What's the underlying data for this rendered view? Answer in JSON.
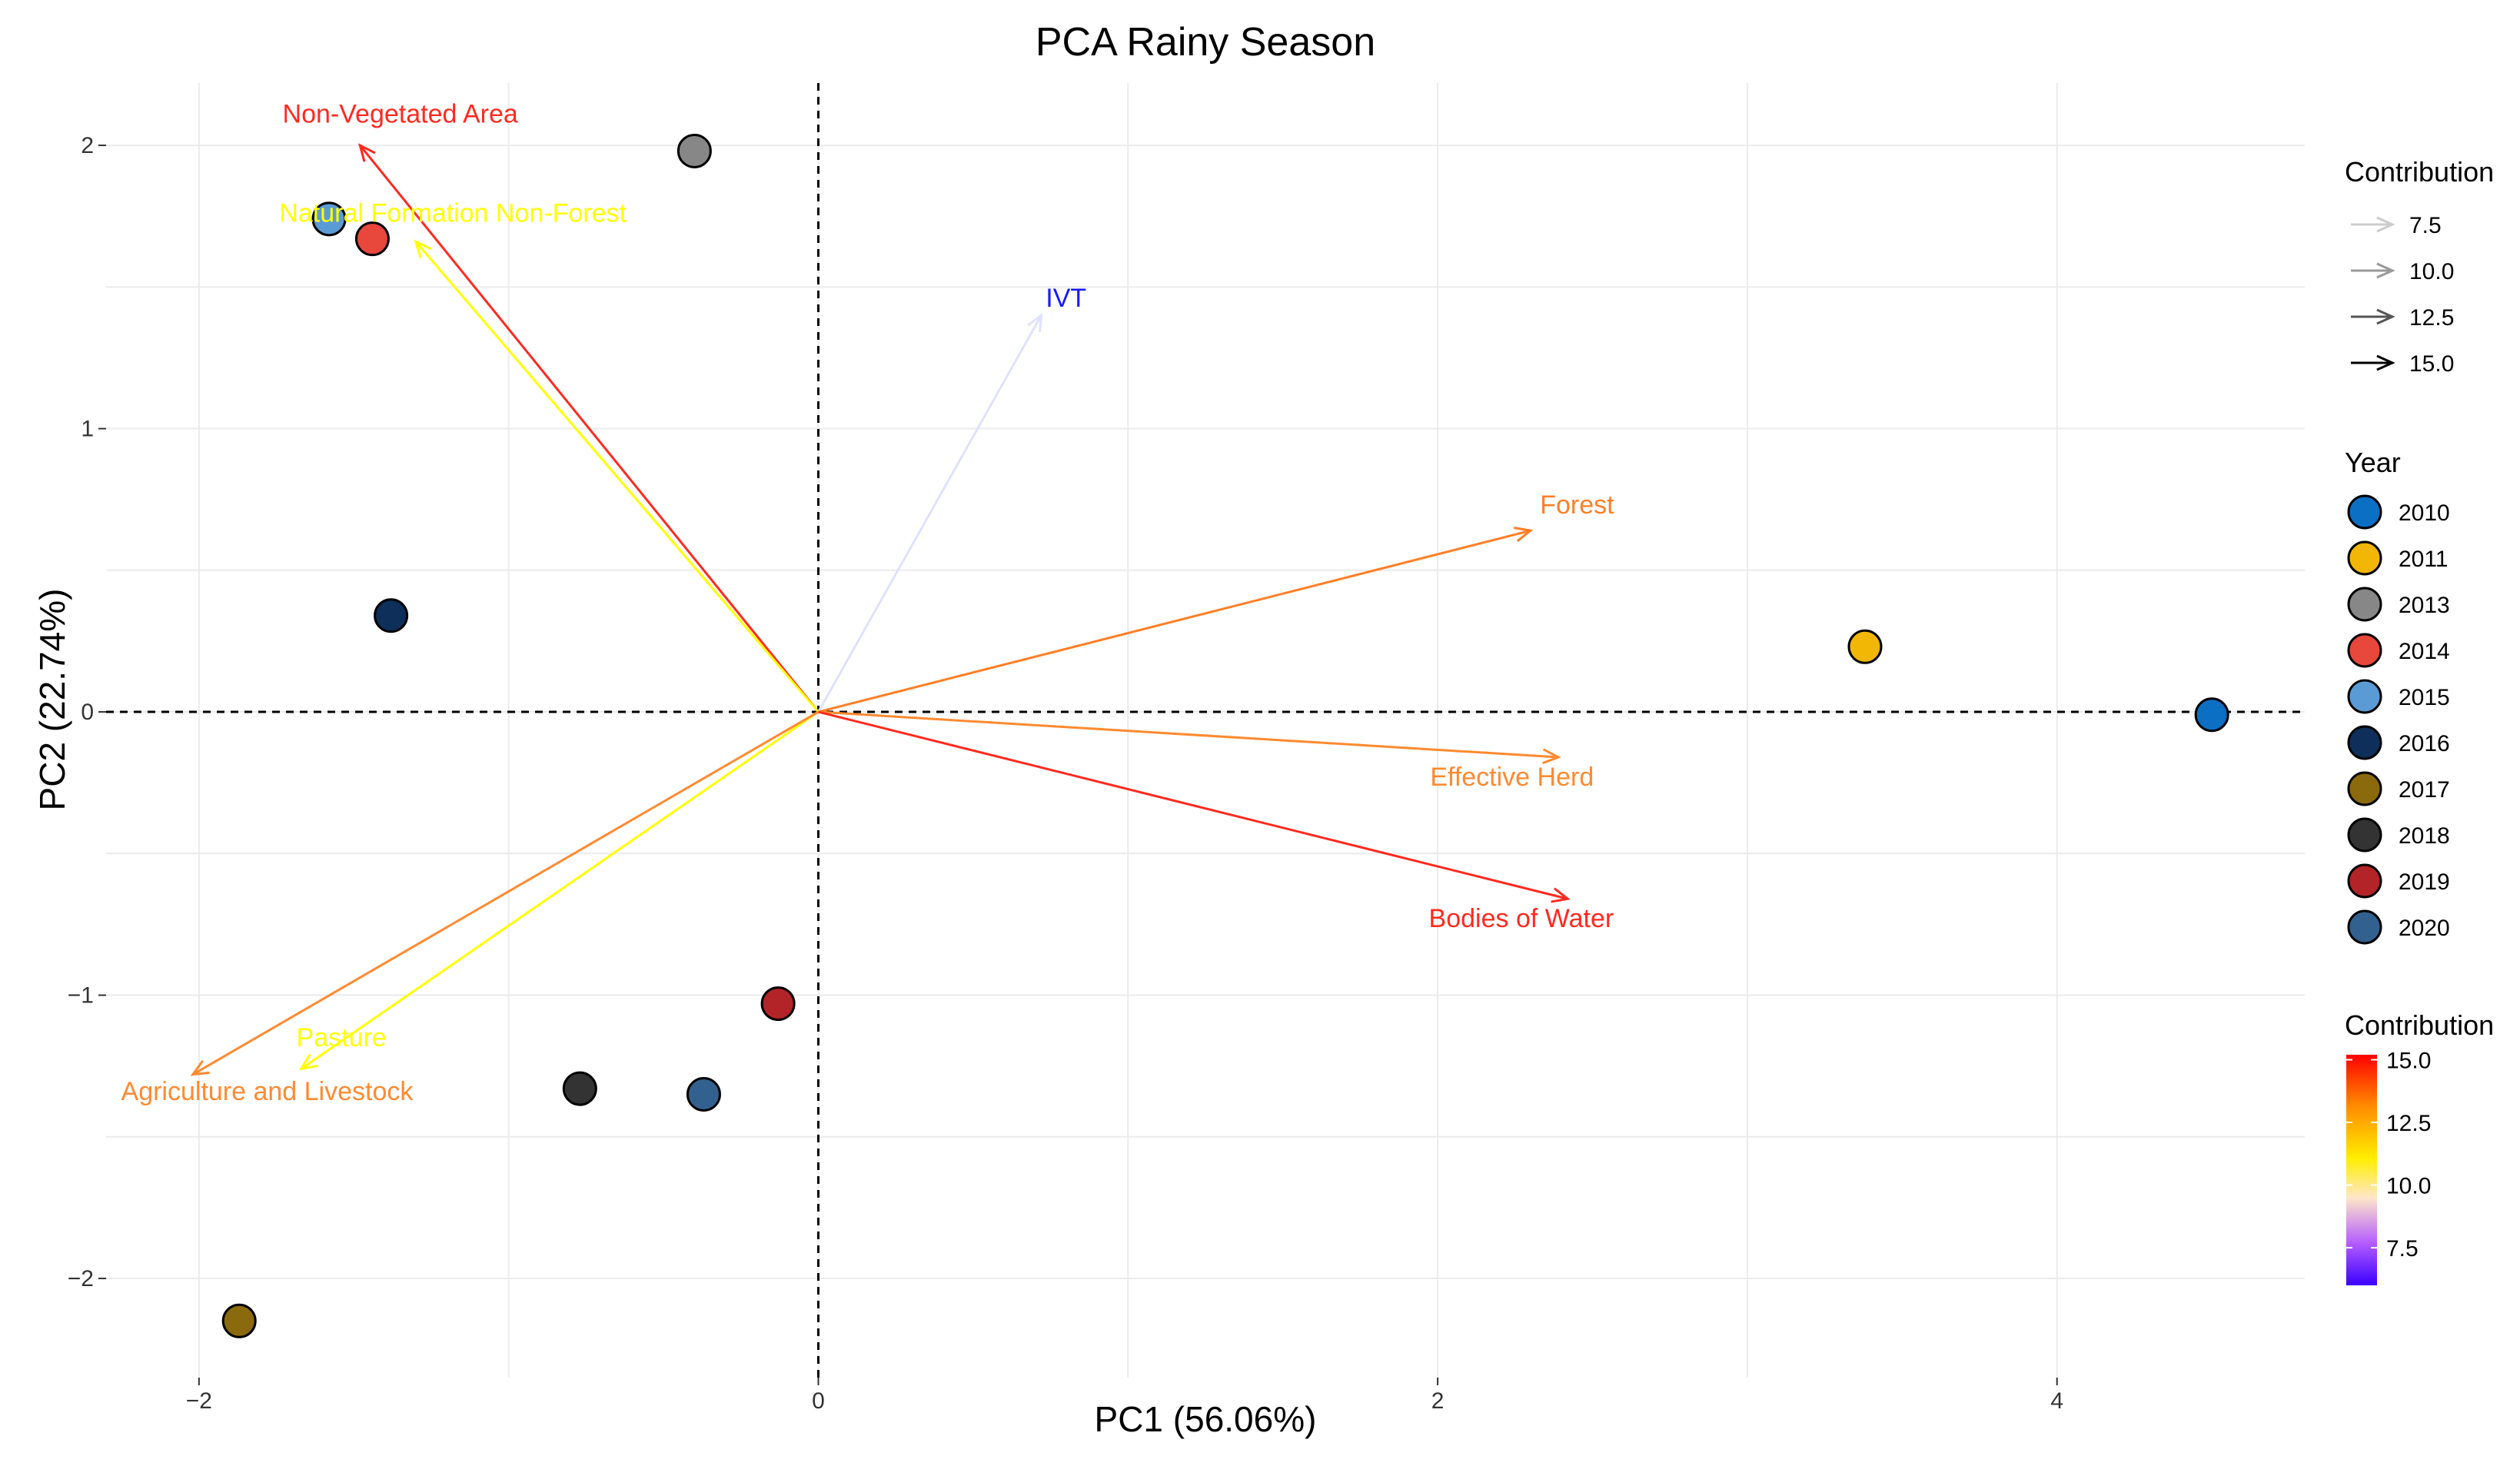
{
  "chart_data": {
    "type": "scatter",
    "title": "PCA Rainy Season",
    "xlabel": "PC1 (56.06%)",
    "ylabel": "PC2 (22.74%)",
    "xlim": [
      -2.3,
      4.8
    ],
    "ylim": [
      -2.35,
      2.22
    ],
    "x_ticks": [
      -2,
      0,
      2,
      4
    ],
    "y_ticks": [
      -2,
      -1,
      0,
      1,
      2
    ],
    "x_tick_labels": [
      "−2",
      "0",
      "2",
      "4"
    ],
    "y_tick_labels": [
      "−2",
      "−1",
      "0",
      "1",
      "2"
    ],
    "grid": true,
    "reference_lines": "dashed lines at x = 0 and y = 0",
    "points": [
      {
        "year": "2010",
        "x": 4.5,
        "y": -0.01,
        "color": "#0b6fc4"
      },
      {
        "year": "2011",
        "x": 3.38,
        "y": 0.23,
        "color": "#f2b705"
      },
      {
        "year": "2013",
        "x": -0.4,
        "y": 1.98,
        "color": "#878787"
      },
      {
        "year": "2014",
        "x": -1.44,
        "y": 1.67,
        "color": "#e8473c"
      },
      {
        "year": "2015",
        "x": -1.58,
        "y": 1.74,
        "color": "#5b9bd5"
      },
      {
        "year": "2016",
        "x": -1.38,
        "y": 0.34,
        "color": "#0d2f59"
      },
      {
        "year": "2017",
        "x": -1.87,
        "y": -2.15,
        "color": "#8a6a0d"
      },
      {
        "year": "2018",
        "x": -0.77,
        "y": -1.33,
        "color": "#333333"
      },
      {
        "year": "2019",
        "x": -0.13,
        "y": -1.03,
        "color": "#b32429"
      },
      {
        "year": "2020",
        "x": -0.37,
        "y": -1.35,
        "color": "#33618f"
      }
    ],
    "vectors": [
      {
        "label": "Non-Vegetated Area",
        "x": -1.48,
        "y": 2.0,
        "contribution": 15.0,
        "color": "#ff2a1f",
        "label_x": -1.35,
        "label_y": 2.08
      },
      {
        "label": "Natural Formation Non-Forest",
        "x": -1.3,
        "y": 1.66,
        "contribution": 11.0,
        "color": "#ffff00",
        "label_x": -1.18,
        "label_y": 1.73
      },
      {
        "label": "IVT",
        "x": 0.72,
        "y": 1.4,
        "contribution": 7.0,
        "color": "#e0e0ff",
        "label_x": 0.8,
        "label_y": 1.43,
        "label_color": "#1a1aff"
      },
      {
        "label": "Forest",
        "x": 2.3,
        "y": 0.64,
        "contribution": 13.5,
        "color": "#ff7f27",
        "label_x": 2.45,
        "label_y": 0.7
      },
      {
        "label": "Effective Herd",
        "x": 2.39,
        "y": -0.16,
        "contribution": 13.5,
        "color": "#ff8a30",
        "label_x": 2.24,
        "label_y": -0.26
      },
      {
        "label": "Bodies of Water",
        "x": 2.42,
        "y": -0.66,
        "contribution": 15.0,
        "color": "#ff2a1f",
        "label_x": 2.27,
        "label_y": -0.76
      },
      {
        "label": "Pasture",
        "x": -1.67,
        "y": -1.26,
        "contribution": 11.0,
        "color": "#ffff00",
        "label_x": -1.54,
        "label_y": -1.18
      },
      {
        "label": "Agriculture and Livestock",
        "x": -2.02,
        "y": -1.28,
        "contribution": 13.5,
        "color": "#ff8a30",
        "label_x": -1.78,
        "label_y": -1.37
      }
    ],
    "legend": {
      "placement": "right",
      "contribution_size": {
        "title": "Contribution",
        "values": [
          "7.5",
          "10.0",
          "12.5",
          "15.0"
        ]
      },
      "year": {
        "title": "Year",
        "entries": [
          "2010",
          "2011",
          "2013",
          "2014",
          "2015",
          "2016",
          "2017",
          "2018",
          "2019",
          "2020"
        ]
      },
      "contribution_color": {
        "title": "Contribution",
        "values": [
          "15.0",
          "12.5",
          "10.0",
          "7.5"
        ],
        "range": [
          6.0,
          15.2
        ]
      }
    }
  }
}
